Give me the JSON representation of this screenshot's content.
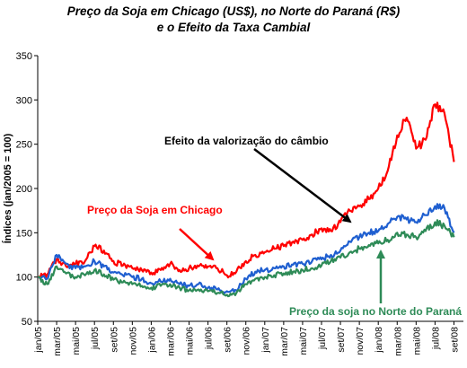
{
  "title_lines": [
    "Preço da Soja em Chicago (US$), no Norte do Paraná (R$)",
    "e o Efeito da Taxa Cambial"
  ],
  "chart_data": {
    "type": "line",
    "ylabel": "Índices (jan/2005 = 100)",
    "xlabel": "",
    "ylim": [
      50,
      350
    ],
    "yticks": [
      50,
      100,
      150,
      200,
      250,
      300,
      350
    ],
    "xlim": [
      "2005-01",
      "2008-10"
    ],
    "xtick_labels": [
      "jan/05",
      "mar/05",
      "mai/05",
      "jul/05",
      "set/05",
      "nov/05",
      "jan/06",
      "mar/06",
      "mai/06",
      "jul/06",
      "set/06",
      "nov/06",
      "jan/07",
      "mar/07",
      "mai/07",
      "jul/07",
      "set/07",
      "nov/07",
      "jan/08",
      "mar/08",
      "mai/08",
      "jul/08",
      "set/08"
    ],
    "grid": false,
    "x": [
      "2005-01",
      "2005-02",
      "2005-03",
      "2005-04",
      "2005-05",
      "2005-06",
      "2005-07",
      "2005-08",
      "2005-09",
      "2005-10",
      "2005-11",
      "2005-12",
      "2006-01",
      "2006-02",
      "2006-03",
      "2006-04",
      "2006-05",
      "2006-06",
      "2006-07",
      "2006-08",
      "2006-09",
      "2006-10",
      "2006-11",
      "2006-12",
      "2007-01",
      "2007-02",
      "2007-03",
      "2007-04",
      "2007-05",
      "2007-06",
      "2007-07",
      "2007-08",
      "2007-09",
      "2007-10",
      "2007-11",
      "2007-12",
      "2008-01",
      "2008-02",
      "2008-03",
      "2008-04",
      "2008-05",
      "2008-06",
      "2008-07",
      "2008-08",
      "2008-09"
    ],
    "series": [
      {
        "color": "#ff0000",
        "values": [
          100,
          103,
          120,
          112,
          115,
          118,
          135,
          130,
          118,
          113,
          110,
          108,
          105,
          108,
          115,
          108,
          110,
          112,
          112,
          110,
          102,
          106,
          118,
          125,
          128,
          132,
          135,
          140,
          142,
          148,
          155,
          152,
          162,
          175,
          180,
          188,
          200,
          220,
          260,
          280,
          245,
          255,
          295,
          285,
          230
        ]
      },
      {
        "color": "#1f5fd0",
        "values": [
          100,
          98,
          125,
          115,
          110,
          112,
          118,
          112,
          105,
          102,
          100,
          98,
          93,
          95,
          98,
          92,
          90,
          92,
          88,
          86,
          84,
          85,
          98,
          106,
          108,
          110,
          112,
          114,
          115,
          118,
          120,
          125,
          130,
          140,
          145,
          150,
          152,
          160,
          168,
          165,
          162,
          170,
          180,
          178,
          150
        ]
      },
      {
        "color": "#2e8b57",
        "values": [
          100,
          92,
          112,
          104,
          100,
          102,
          108,
          103,
          97,
          94,
          92,
          90,
          88,
          90,
          92,
          88,
          85,
          86,
          84,
          82,
          80,
          82,
          92,
          98,
          100,
          102,
          104,
          106,
          108,
          110,
          113,
          118,
          122,
          128,
          132,
          136,
          138,
          142,
          150,
          148,
          145,
          152,
          162,
          158,
          145
        ]
      }
    ],
    "annotations": [
      {
        "text": "Efeito da valorização do câmbio",
        "color": "#000000"
      },
      {
        "text": "Preço da Soja em Chicago",
        "color": "#ff0000"
      },
      {
        "text": "Preço da soja no Norte do Paraná",
        "color": "#2e8b57"
      }
    ]
  }
}
